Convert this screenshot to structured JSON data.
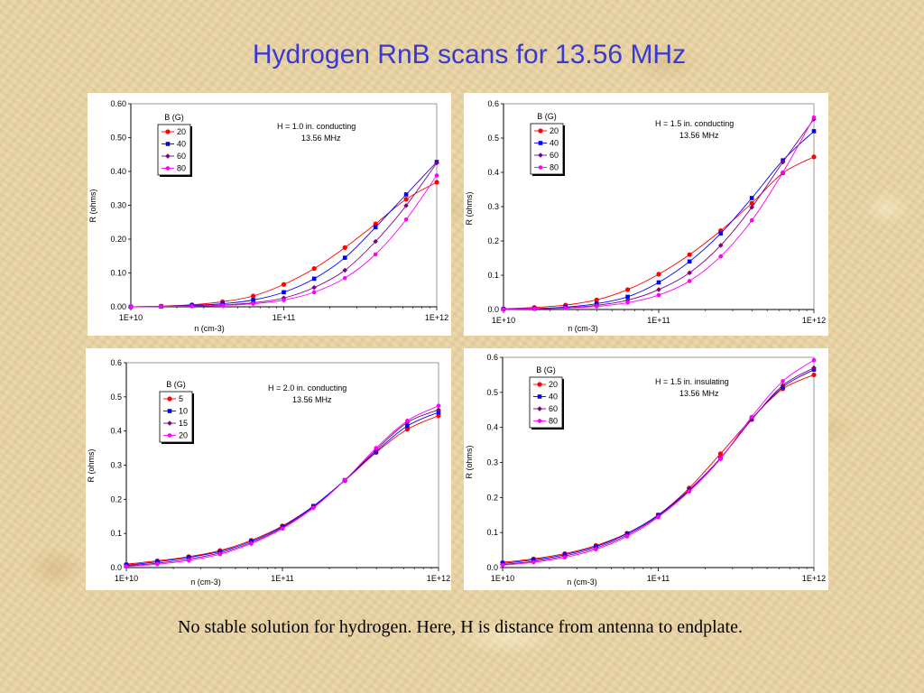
{
  "slide": {
    "title": "Hydrogen RnB scans for 13.56 MHz",
    "caption": "No stable solution for hydrogen.  Here, H is distance from antenna to endplate."
  },
  "series_colors": [
    "#ff0000",
    "#0000ff",
    "#800080",
    "#ff00ff"
  ],
  "chart_data": [
    {
      "type": "line",
      "xscale": "log",
      "xlim": [
        10000000000.0,
        1000000000000.0
      ],
      "ylim": [
        0,
        0.6
      ],
      "yticks": [
        "0.00",
        "0.10",
        "0.20",
        "0.30",
        "0.40",
        "0.50",
        "0.60"
      ],
      "xticks": [
        "1E+10",
        "1E+11",
        "1E+12"
      ],
      "xlabel": "n (cm-3)",
      "ylabel": "R (ohms)",
      "legend_title": "B (G)",
      "annotation": [
        "H = 1.0 in. conducting",
        "13.56 MHz"
      ],
      "x": [
        10000000000.0,
        15800000000.0,
        25100000000.0,
        39800000000.0,
        63100000000.0,
        100000000000.0,
        158000000000.0,
        251000000000.0,
        398000000000.0,
        631000000000.0,
        1000000000000.0
      ],
      "series": [
        {
          "name": "20",
          "values": [
            0.0,
            0.002,
            0.006,
            0.015,
            0.032,
            0.066,
            0.113,
            0.175,
            0.245,
            0.318,
            0.368
          ]
        },
        {
          "name": "40",
          "values": [
            0.0,
            0.001,
            0.004,
            0.009,
            0.02,
            0.043,
            0.083,
            0.145,
            0.235,
            0.332,
            0.428
          ]
        },
        {
          "name": "60",
          "values": [
            0.0,
            0.001,
            0.002,
            0.005,
            0.012,
            0.026,
            0.057,
            0.108,
            0.193,
            0.299,
            0.425
          ]
        },
        {
          "name": "80",
          "values": [
            0.0,
            0.001,
            0.002,
            0.004,
            0.009,
            0.02,
            0.043,
            0.085,
            0.155,
            0.258,
            0.388
          ]
        }
      ]
    },
    {
      "type": "line",
      "xscale": "log",
      "xlim": [
        10000000000.0,
        1000000000000.0
      ],
      "ylim": [
        0,
        0.6
      ],
      "yticks": [
        "0.0",
        "0.1",
        "0.2",
        "0.3",
        "0.4",
        "0.5",
        "0.6"
      ],
      "xticks": [
        "1E+10",
        "1E+11",
        "1E+12"
      ],
      "xlabel": "n (cm-3)",
      "ylabel": "R (ohms)",
      "legend_title": "B (G)",
      "annotation": [
        "H = 1.5 in. conducting",
        "13.56 MHz"
      ],
      "x": [
        10000000000.0,
        15800000000.0,
        25100000000.0,
        39800000000.0,
        63100000000.0,
        100000000000.0,
        158000000000.0,
        251000000000.0,
        398000000000.0,
        631000000000.0,
        1000000000000.0
      ],
      "series": [
        {
          "name": "20",
          "values": [
            0.002,
            0.006,
            0.013,
            0.028,
            0.058,
            0.103,
            0.16,
            0.23,
            0.31,
            0.398,
            0.445
          ]
        },
        {
          "name": "40",
          "values": [
            0.001,
            0.003,
            0.007,
            0.017,
            0.037,
            0.079,
            0.14,
            0.222,
            0.325,
            0.435,
            0.52
          ]
        },
        {
          "name": "60",
          "values": [
            0.001,
            0.002,
            0.005,
            0.012,
            0.027,
            0.058,
            0.107,
            0.187,
            0.298,
            0.43,
            0.555
          ]
        },
        {
          "name": "80",
          "values": [
            0.0,
            0.002,
            0.004,
            0.009,
            0.02,
            0.042,
            0.083,
            0.155,
            0.26,
            0.4,
            0.56
          ]
        }
      ]
    },
    {
      "type": "line",
      "xscale": "log",
      "xlim": [
        10000000000.0,
        1000000000000.0
      ],
      "ylim": [
        0,
        0.6
      ],
      "yticks": [
        "0.0",
        "0.1",
        "0.2",
        "0.3",
        "0.4",
        "0.5",
        "0.6"
      ],
      "xticks": [
        "1E+10",
        "1E+11",
        "1E+12"
      ],
      "xlabel": "n (cm-3)",
      "ylabel": "R (ohms)",
      "legend_title": "B (G)",
      "annotation": [
        "H = 2.0 in. conducting",
        "13.56 MHz"
      ],
      "x": [
        10000000000.0,
        15800000000.0,
        25100000000.0,
        39800000000.0,
        63100000000.0,
        100000000000.0,
        158000000000.0,
        251000000000.0,
        398000000000.0,
        631000000000.0,
        1000000000000.0
      ],
      "series": [
        {
          "name": "5",
          "values": [
            0.01,
            0.02,
            0.032,
            0.05,
            0.08,
            0.122,
            0.18,
            0.255,
            0.337,
            0.405,
            0.445
          ]
        },
        {
          "name": "10",
          "values": [
            0.007,
            0.017,
            0.03,
            0.047,
            0.077,
            0.12,
            0.18,
            0.256,
            0.34,
            0.415,
            0.455
          ]
        },
        {
          "name": "15",
          "values": [
            0.005,
            0.013,
            0.025,
            0.043,
            0.073,
            0.117,
            0.177,
            0.256,
            0.345,
            0.425,
            0.462
          ]
        },
        {
          "name": "20",
          "values": [
            0.003,
            0.01,
            0.021,
            0.039,
            0.07,
            0.114,
            0.175,
            0.256,
            0.35,
            0.43,
            0.474
          ]
        }
      ]
    },
    {
      "type": "line",
      "xscale": "log",
      "xlim": [
        10000000000.0,
        1000000000000.0
      ],
      "ylim": [
        0,
        0.6
      ],
      "yticks": [
        "0.0",
        "0.1",
        "0.2",
        "0.3",
        "0.4",
        "0.5",
        "0.6"
      ],
      "xticks": [
        "1E+10",
        "1E+11",
        "1E+12"
      ],
      "xlabel": "n (cm-3)",
      "ylabel": "R (ohms)",
      "legend_title": "B (G)",
      "annotation": [
        "H = 1.5 in. insulating",
        "13.56 MHz"
      ],
      "x": [
        10000000000.0,
        15800000000.0,
        25100000000.0,
        39800000000.0,
        63100000000.0,
        100000000000.0,
        158000000000.0,
        251000000000.0,
        398000000000.0,
        631000000000.0,
        1000000000000.0
      ],
      "series": [
        {
          "name": "20",
          "values": [
            0.015,
            0.025,
            0.04,
            0.063,
            0.098,
            0.15,
            0.227,
            0.325,
            0.425,
            0.51,
            0.55
          ]
        },
        {
          "name": "40",
          "values": [
            0.012,
            0.022,
            0.037,
            0.06,
            0.097,
            0.15,
            0.222,
            0.312,
            0.423,
            0.515,
            0.565
          ]
        },
        {
          "name": "60",
          "values": [
            0.009,
            0.018,
            0.033,
            0.056,
            0.093,
            0.147,
            0.22,
            0.312,
            0.422,
            0.52,
            0.57
          ]
        },
        {
          "name": "80",
          "values": [
            0.007,
            0.015,
            0.029,
            0.052,
            0.089,
            0.144,
            0.217,
            0.31,
            0.43,
            0.532,
            0.592
          ]
        }
      ]
    }
  ]
}
